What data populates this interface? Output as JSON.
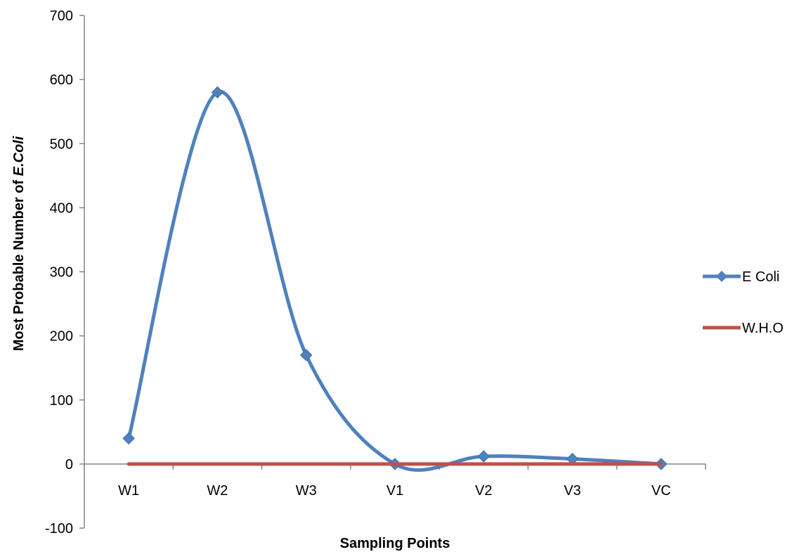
{
  "chart_data": {
    "type": "line",
    "categories": [
      "W1",
      "W2",
      "W3",
      "V1",
      "V2",
      "V3",
      "VC"
    ],
    "series": [
      {
        "name": "E Coli",
        "values": [
          40,
          580,
          170,
          0,
          12,
          8,
          0
        ],
        "color": "#4F81BD",
        "marker": "diamond",
        "smooth": true
      },
      {
        "name": "W.H.O",
        "values": [
          0,
          0,
          0,
          0,
          0,
          0,
          0
        ],
        "color": "#C0504D",
        "marker": "none",
        "smooth": false
      }
    ],
    "xlabel": "Sampling Points",
    "ylabel_prefix": "Most Probable Number of ",
    "ylabel_italic": "E.Coli",
    "ylim": [
      -100,
      700
    ],
    "yticks": [
      -100,
      0,
      100,
      200,
      300,
      400,
      500,
      600,
      700
    ],
    "grid": false,
    "legend_position": "right"
  }
}
